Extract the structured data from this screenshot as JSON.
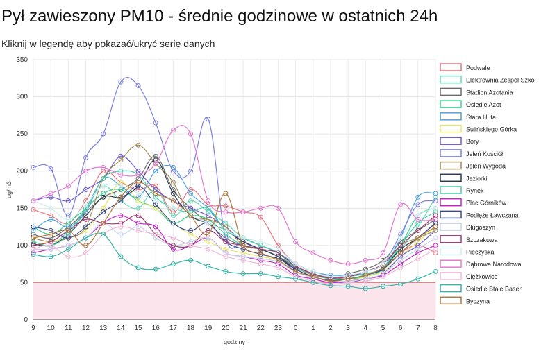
{
  "page": {
    "title": "Pył zawieszony PM10 - średnie godzinowe w ostatnich 24h",
    "subtitle": "Kliknij w legendę aby pokazać/ukryć serię danych"
  },
  "chart_data": {
    "type": "line",
    "xlabel": "godziny",
    "ylabel": "ug/m3",
    "ylim": [
      0,
      350
    ],
    "yticks": [
      0,
      50,
      100,
      150,
      200,
      250,
      300,
      350
    ],
    "x": [
      "9",
      "10",
      "11",
      "12",
      "13",
      "14",
      "15",
      "16",
      "17",
      "18",
      "19",
      "20",
      "21",
      "22",
      "23",
      "0",
      "1",
      "2",
      "3",
      "4",
      "5",
      "6",
      "7",
      "8"
    ],
    "grid": true,
    "legend_position": "right",
    "threshold": {
      "value": 50,
      "color": "#e57373",
      "fill": "#fce4ec"
    },
    "series": [
      {
        "name": "Podwale",
        "color": "#e5737f",
        "values": [
          148,
          140,
          130,
          160,
          200,
          185,
          175,
          180,
          145,
          175,
          155,
          153,
          145,
          138,
          100,
          75,
          65,
          58,
          55,
          60,
          68,
          90,
          100,
          90
        ]
      },
      {
        "name": "Elektrownia Zespół Szkół",
        "color": "#66d9b8",
        "values": [
          105,
          100,
          120,
          150,
          180,
          160,
          150,
          175,
          140,
          160,
          145,
          130,
          110,
          100,
          90,
          70,
          62,
          55,
          55,
          60,
          70,
          95,
          125,
          165
        ]
      },
      {
        "name": "Stadion Azotania",
        "color": "#6b6b6b",
        "values": [
          115,
          110,
          125,
          145,
          165,
          175,
          190,
          220,
          175,
          150,
          130,
          110,
          100,
          95,
          85,
          72,
          62,
          56,
          62,
          68,
          80,
          105,
          120,
          135
        ]
      },
      {
        "name": "Osiedle Azot",
        "color": "#3ccf8e",
        "values": [
          125,
          115,
          130,
          150,
          170,
          175,
          160,
          150,
          130,
          140,
          135,
          115,
          100,
          95,
          85,
          70,
          60,
          55,
          55,
          58,
          68,
          100,
          140,
          150
        ]
      },
      {
        "name": "Stara Huta",
        "color": "#4fa3d9",
        "values": [
          120,
          135,
          125,
          145,
          190,
          180,
          165,
          200,
          205,
          170,
          150,
          120,
          110,
          100,
          90,
          75,
          65,
          60,
          60,
          62,
          70,
          110,
          165,
          170
        ]
      },
      {
        "name": "Sulińskiego Górka",
        "color": "#e8e870",
        "values": [
          100,
          105,
          110,
          120,
          150,
          185,
          160,
          150,
          130,
          115,
          105,
          95,
          90,
          85,
          80,
          65,
          58,
          52,
          52,
          58,
          65,
          85,
          105,
          125
        ]
      },
      {
        "name": "Bory",
        "color": "#6a5acd",
        "values": [
          160,
          165,
          160,
          175,
          190,
          220,
          200,
          175,
          160,
          150,
          140,
          125,
          105,
          95,
          85,
          65,
          58,
          52,
          50,
          55,
          62,
          85,
          100,
          120
        ]
      },
      {
        "name": "Jeleń Kościół",
        "color": "#7b7fe0",
        "values": [
          205,
          203,
          140,
          218,
          250,
          320,
          315,
          265,
          200,
          200,
          270,
          110,
          105,
          95,
          90,
          70,
          62,
          57,
          60,
          65,
          75,
          115,
          155,
          160
        ]
      },
      {
        "name": "Jeleń Wygoda",
        "color": "#a08c5a",
        "values": [
          110,
          105,
          110,
          125,
          190,
          215,
          235,
          210,
          185,
          140,
          135,
          125,
          100,
          95,
          85,
          70,
          60,
          56,
          58,
          65,
          75,
          100,
          110,
          120
        ]
      },
      {
        "name": "Jeziorki",
        "color": "#2e3a4e",
        "values": [
          102,
          100,
          115,
          140,
          165,
          165,
          180,
          215,
          170,
          140,
          130,
          120,
          105,
          95,
          85,
          68,
          58,
          52,
          55,
          60,
          70,
          95,
          110,
          130
        ]
      },
      {
        "name": "Rynek",
        "color": "#50c8a8",
        "values": [
          105,
          100,
          115,
          150,
          190,
          200,
          195,
          165,
          150,
          145,
          150,
          120,
          110,
          100,
          90,
          70,
          62,
          56,
          58,
          62,
          70,
          100,
          130,
          145
        ]
      },
      {
        "name": "Plac Górników",
        "color": "#c026c0",
        "values": [
          90,
          95,
          100,
          110,
          130,
          140,
          130,
          125,
          95,
          100,
          110,
          90,
          85,
          80,
          75,
          60,
          55,
          50,
          52,
          55,
          60,
          75,
          90,
          100
        ]
      },
      {
        "name": "Podłęże Ławczana",
        "color": "#3b4a8c",
        "values": [
          125,
          120,
          110,
          125,
          145,
          160,
          180,
          155,
          130,
          120,
          130,
          105,
          95,
          88,
          82,
          68,
          58,
          53,
          55,
          60,
          68,
          90,
          110,
          130
        ]
      },
      {
        "name": "Długoszyn",
        "color": "#c8d2ec",
        "values": [
          95,
          95,
          100,
          110,
          130,
          115,
          125,
          110,
          100,
          105,
          110,
          90,
          85,
          82,
          78,
          64,
          57,
          52,
          52,
          55,
          62,
          80,
          95,
          110
        ]
      },
      {
        "name": "Szczakowa",
        "color": "#9c3a6e",
        "values": [
          100,
          105,
          120,
          135,
          130,
          130,
          140,
          115,
          100,
          100,
          120,
          105,
          100,
          95,
          90,
          72,
          62,
          56,
          58,
          65,
          75,
          100,
          120,
          140
        ]
      },
      {
        "name": "Pieczyska",
        "color": "#cfeef0",
        "values": [
          160,
          150,
          135,
          155,
          180,
          180,
          170,
          160,
          150,
          140,
          130,
          120,
          110,
          105,
          95,
          75,
          65,
          58,
          60,
          65,
          75,
          110,
          140,
          150
        ]
      },
      {
        "name": "Dąbrowa Narodowa",
        "color": "#e27ad1",
        "values": [
          160,
          170,
          180,
          200,
          205,
          195,
          195,
          210,
          255,
          250,
          160,
          145,
          145,
          150,
          150,
          105,
          90,
          80,
          75,
          80,
          90,
          155,
          135,
          135
        ]
      },
      {
        "name": "Ciężkowice",
        "color": "#f0b8d8",
        "values": [
          95,
          100,
          85,
          90,
          115,
          125,
          120,
          115,
          110,
          100,
          95,
          85,
          80,
          75,
          70,
          58,
          52,
          48,
          50,
          52,
          58,
          70,
          82,
          95
        ]
      },
      {
        "name": "Osiedle Stałe Basen",
        "color": "#35b5a8",
        "values": [
          88,
          85,
          95,
          110,
          115,
          85,
          70,
          68,
          75,
          80,
          72,
          65,
          62,
          62,
          58,
          55,
          50,
          46,
          45,
          42,
          45,
          48,
          55,
          65
        ]
      },
      {
        "name": "Byczyna",
        "color": "#b07840",
        "values": [
          110,
          115,
          120,
          100,
          130,
          165,
          185,
          170,
          160,
          140,
          115,
          170,
          100,
          90,
          80,
          65,
          58,
          52,
          55,
          60,
          70,
          90,
          110,
          125
        ]
      }
    ]
  }
}
